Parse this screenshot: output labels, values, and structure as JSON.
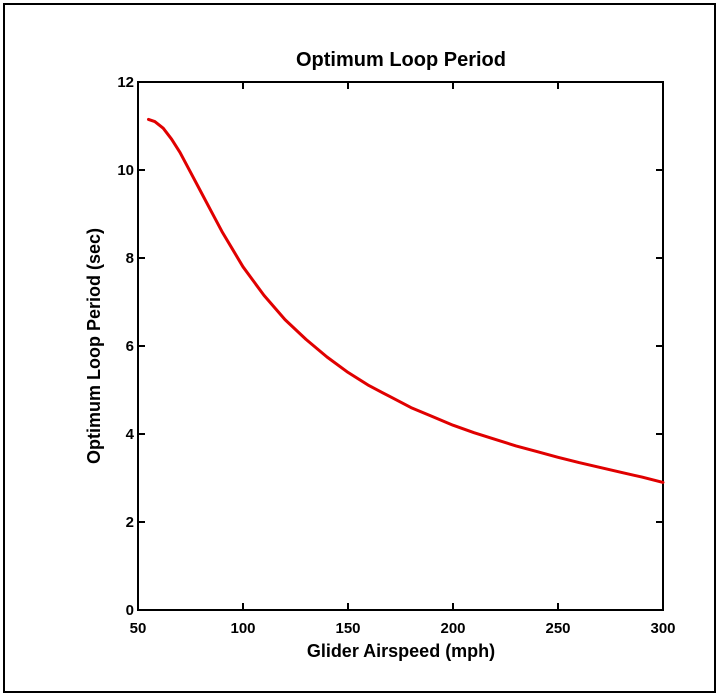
{
  "chart_data": {
    "type": "line",
    "title": "Optimum Loop Period",
    "xlabel": "Glider Airspeed (mph)",
    "ylabel": "Optimum Loop Period (sec)",
    "xlim": [
      50,
      300
    ],
    "ylim": [
      0,
      12
    ],
    "x_ticks": [
      50,
      100,
      150,
      200,
      250,
      300
    ],
    "y_ticks": [
      0,
      2,
      4,
      6,
      8,
      10,
      12
    ],
    "grid": false,
    "series": [
      {
        "color": "#e00000",
        "x": [
          55,
          58,
          62,
          66,
          70,
          75,
          80,
          85,
          90,
          95,
          100,
          110,
          120,
          130,
          140,
          150,
          160,
          170,
          180,
          190,
          200,
          210,
          220,
          230,
          240,
          250,
          260,
          270,
          280,
          290,
          300
        ],
        "y": [
          11.15,
          11.1,
          10.95,
          10.7,
          10.4,
          9.95,
          9.5,
          9.05,
          8.6,
          8.2,
          7.8,
          7.15,
          6.6,
          6.15,
          5.75,
          5.4,
          5.1,
          4.85,
          4.6,
          4.4,
          4.2,
          4.03,
          3.88,
          3.73,
          3.6,
          3.47,
          3.35,
          3.24,
          3.13,
          3.02,
          2.9
        ]
      }
    ]
  }
}
